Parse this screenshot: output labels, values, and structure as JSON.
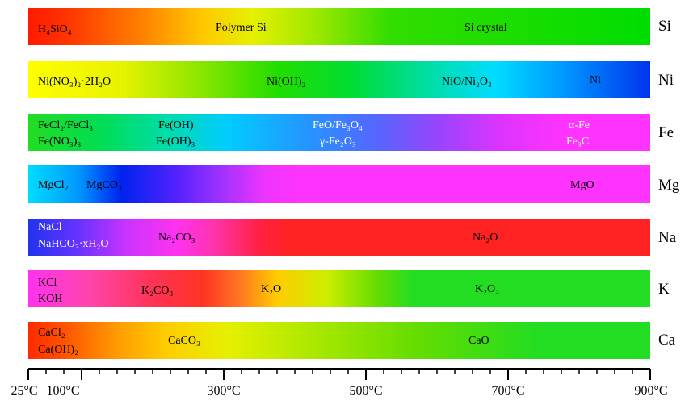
{
  "rows": [
    {
      "element": "Si",
      "labels": [
        "H₄SiO₄",
        "Polymer Si",
        "Si crystal"
      ]
    },
    {
      "element": "Ni",
      "labels": [
        "Ni(NO₃)₂·2H₂O",
        "Ni(OH)₂",
        "NiO/Ni₂O₃",
        "Ni"
      ]
    },
    {
      "element": "Fe",
      "labels": [
        "FeCl₂/FeCl₃",
        "Fe(NO₃)₃",
        "Fe(OH)",
        "Fe(OH)₃",
        "FeO/Fe₃O₄",
        "γ-Fe₂O₃",
        "α-Fe",
        "Fe₃C"
      ]
    },
    {
      "element": "Mg",
      "labels": [
        "MgCl₂",
        "MgCO₃",
        "MgO"
      ]
    },
    {
      "element": "Na",
      "labels": [
        "NaCl",
        "NaHCO₃·xH₂O",
        "Na₂CO₃",
        "Na₂O"
      ]
    },
    {
      "element": "K",
      "labels": [
        "KCl",
        "KOH",
        "K₂CO₃",
        "K₂O",
        "K₂O₂"
      ]
    },
    {
      "element": "Ca",
      "labels": [
        "CaCl₂",
        "Ca(OH)₂",
        "CaCO₃",
        "CaO"
      ]
    }
  ],
  "axis": {
    "ticks": [
      "25°C",
      "100°C",
      "300°C",
      "500°C",
      "700°C",
      "900°C"
    ],
    "tick_values": [
      25,
      100,
      300,
      500,
      700,
      900
    ]
  }
}
